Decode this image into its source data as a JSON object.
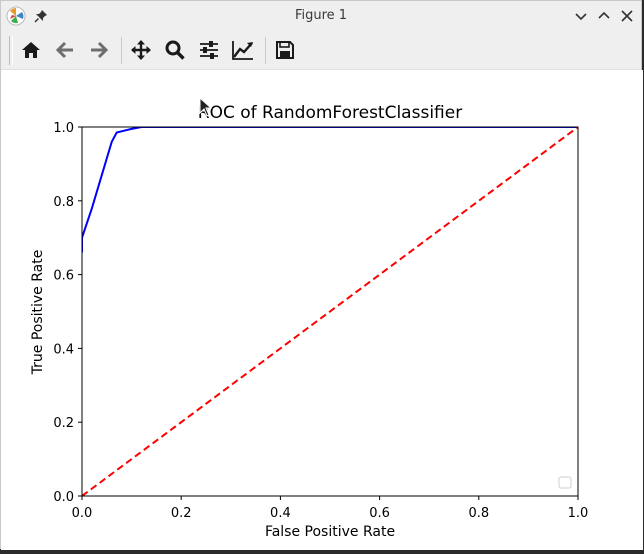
{
  "window": {
    "title": "Figure 1"
  },
  "toolbar": {
    "buttons": [
      {
        "name": "home-button",
        "icon": "home-icon"
      },
      {
        "name": "back-button",
        "icon": "arrow-left-icon"
      },
      {
        "name": "forward-button",
        "icon": "arrow-right-icon"
      },
      {
        "name": "pan-button",
        "icon": "move-icon"
      },
      {
        "name": "zoom-button",
        "icon": "magnifier-icon"
      },
      {
        "name": "subplots-button",
        "icon": "sliders-icon"
      },
      {
        "name": "customize-button",
        "icon": "line-chart-icon"
      },
      {
        "name": "save-button",
        "icon": "floppy-disk-icon"
      }
    ]
  },
  "colors": {
    "roc_curve": "#0000ff",
    "chance_line": "#ff0000",
    "axes": "#000000"
  },
  "chart_data": {
    "type": "line",
    "title": "ROC of RandomForestClassifier",
    "xlabel": "False Positive Rate",
    "ylabel": "True Positive Rate",
    "xlim": [
      0.0,
      1.0
    ],
    "ylim": [
      0.0,
      1.0
    ],
    "xticks": [
      "0.0",
      "0.2",
      "0.4",
      "0.6",
      "0.8",
      "1.0"
    ],
    "yticks": [
      "0.0",
      "0.2",
      "0.4",
      "0.6",
      "0.8",
      "1.0"
    ],
    "grid": false,
    "legend": "lower-right",
    "series": [
      {
        "style": "solid",
        "color": "#0000ff",
        "x": [
          0.0,
          0.0,
          0.02,
          0.04,
          0.06,
          0.07,
          0.1,
          0.12,
          1.0
        ],
        "y": [
          0.66,
          0.7,
          0.78,
          0.87,
          0.96,
          0.985,
          0.995,
          1.0,
          1.0
        ]
      },
      {
        "style": "dashed",
        "color": "#ff0000",
        "x": [
          0.0,
          1.0
        ],
        "y": [
          0.0,
          1.0
        ]
      }
    ]
  }
}
